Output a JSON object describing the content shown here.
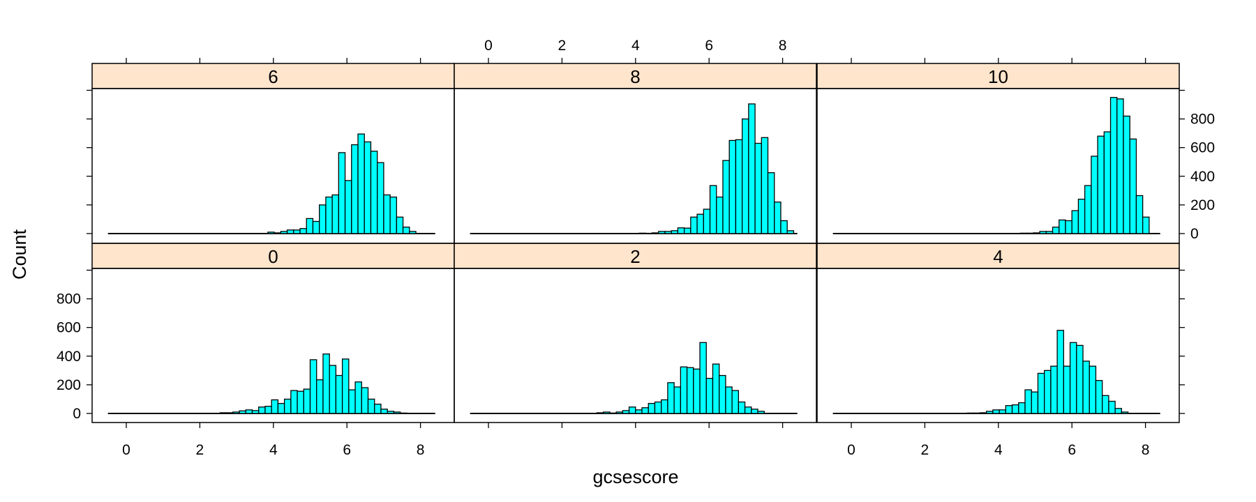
{
  "chart_data": {
    "type": "bar",
    "subtype": "histogram",
    "layout": "lattice 3 columns x 2 rows",
    "xlabel": "gcsescore",
    "ylabel": "Count",
    "xlim": [
      -0.93,
      8.93
    ],
    "ylim": [
      -65,
      1060
    ],
    "x_ticks": [
      0,
      2,
      4,
      6,
      8
    ],
    "y_ticks": [
      0,
      200,
      400,
      600,
      800
    ],
    "bin_width": 0.175,
    "bin_start": 3.78,
    "grid": false,
    "bar_color": "#00FFFF",
    "strip_color": "#FFE5CC",
    "panels": [
      {
        "label": "0",
        "row": 2,
        "col": 1,
        "bin_start": 2.55,
        "values": [
          5,
          5,
          10,
          18,
          25,
          20,
          45,
          50,
          95,
          70,
          100,
          160,
          155,
          170,
          375,
          235,
          415,
          335,
          265,
          380,
          165,
          220,
          180,
          100,
          65,
          30,
          15,
          10,
          3
        ]
      },
      {
        "label": "2",
        "row": 2,
        "col": 2,
        "bin_start": 2.95,
        "values": [
          5,
          10,
          3,
          10,
          20,
          45,
          25,
          40,
          70,
          80,
          95,
          215,
          185,
          325,
          320,
          310,
          495,
          245,
          345,
          265,
          185,
          160,
          80,
          45,
          30,
          15
        ]
      },
      {
        "label": "4",
        "row": 2,
        "col": 3,
        "bin_start": 3.15,
        "values": [
          3,
          3,
          5,
          15,
          25,
          25,
          55,
          60,
          75,
          165,
          150,
          280,
          300,
          330,
          580,
          330,
          495,
          475,
          365,
          330,
          230,
          125,
          85,
          35,
          10
        ]
      },
      {
        "label": "6",
        "row": 1,
        "col": 1,
        "bin_start": 3.85,
        "values": [
          10,
          5,
          15,
          25,
          25,
          35,
          105,
          85,
          200,
          255,
          270,
          565,
          370,
          620,
          695,
          640,
          575,
          495,
          270,
          255,
          115,
          45,
          15
        ]
      },
      {
        "label": "8",
        "row": 1,
        "col": 2,
        "bin_start": 4.1,
        "values": [
          3,
          2,
          5,
          15,
          15,
          20,
          40,
          38,
          115,
          135,
          170,
          335,
          255,
          510,
          650,
          655,
          800,
          905,
          630,
          670,
          425,
          220,
          90,
          20
        ]
      },
      {
        "label": "10",
        "row": 1,
        "col": 3,
        "bin_start": 4.6,
        "values": [
          3,
          3,
          5,
          15,
          15,
          45,
          95,
          90,
          160,
          240,
          335,
          540,
          680,
          710,
          950,
          940,
          820,
          660,
          265,
          115
        ]
      }
    ]
  },
  "axis": {
    "xlabel": "gcsescore",
    "ylabel": "Count",
    "x_tick_labels": [
      "0",
      "2",
      "4",
      "6",
      "8"
    ],
    "y_tick_labels": [
      "0",
      "200",
      "400",
      "600",
      "800"
    ]
  }
}
